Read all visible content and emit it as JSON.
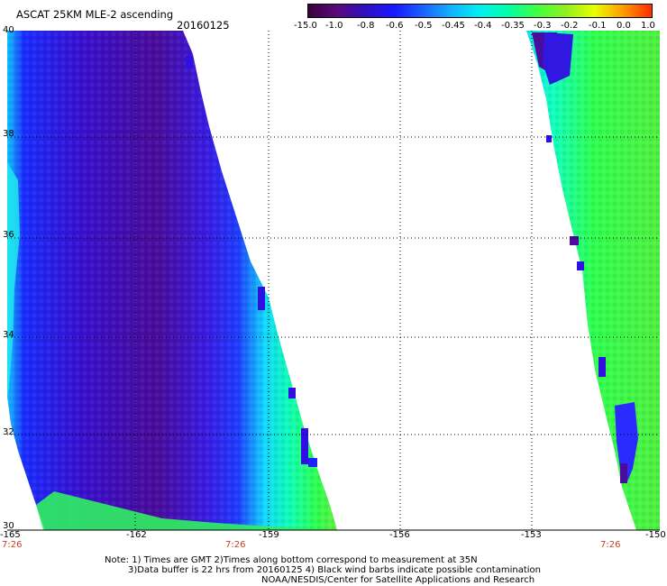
{
  "header": {
    "title": "ASCAT 25KM MLE-2 ascending",
    "date": "20160125"
  },
  "colorbar": {
    "labels": [
      "-15.0",
      "-1.0",
      "-0.8",
      "-0.6",
      "-0.5",
      "-0.45",
      "-0.4",
      "-0.35",
      "-0.3",
      "-0.2",
      "-0.1",
      "0.0",
      "1.0"
    ],
    "colors": [
      "#3a003a",
      "#5a0a7a",
      "#3010c0",
      "#1818ff",
      "#1c60ff",
      "#10b4ff",
      "#00f0f0",
      "#00ffa8",
      "#40ff40",
      "#90f020",
      "#e8ff00",
      "#ff9a00",
      "#ff2a00"
    ]
  },
  "axes": {
    "lat_labels": [
      "40",
      "38",
      "36",
      "34",
      "32",
      "30"
    ],
    "lon_labels": [
      "-165",
      "-162",
      "-159",
      "-156",
      "-153",
      "-150"
    ]
  },
  "times": [
    "7:26",
    "7:26",
    "7:26"
  ],
  "notes": {
    "line1": "Note: 1) Times are GMT 2)Times along bottom correspond to measurement at 35N",
    "line2": "3)Data buffer is 22 hrs from 20160125 4) Black wind barbs indicate possible contamination",
    "line3": "NOAA/NESDIS/Center for Satellite Applications and Research"
  }
}
